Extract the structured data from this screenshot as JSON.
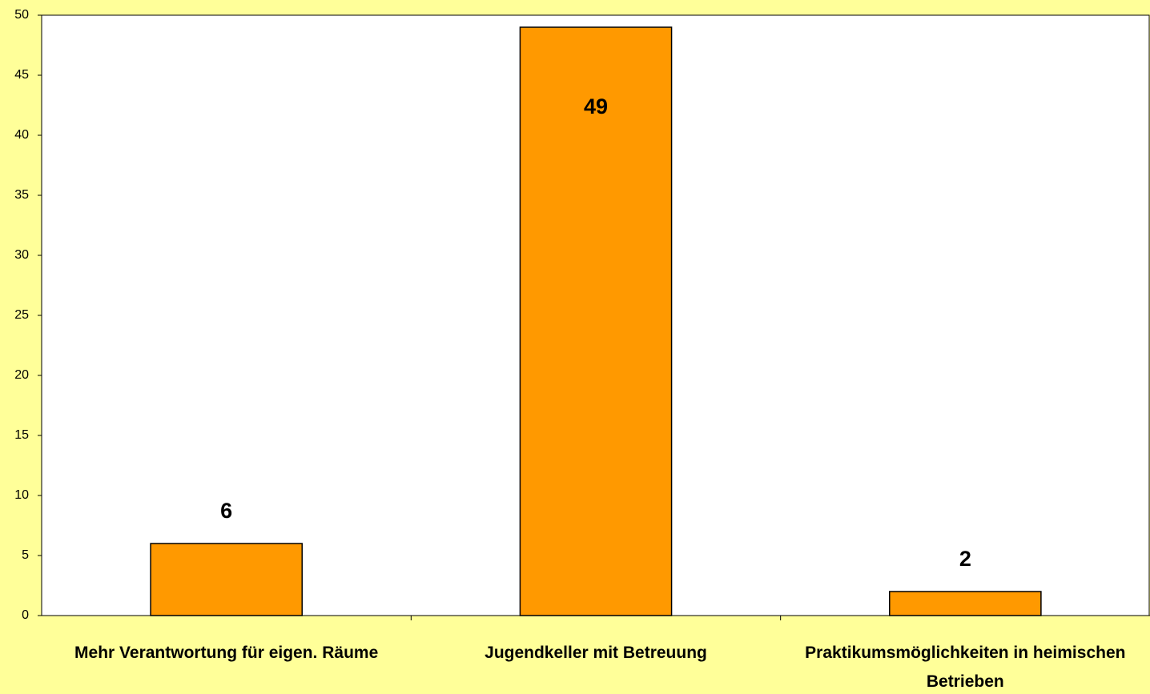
{
  "chart_data": {
    "type": "bar",
    "categories": [
      "Mehr Verantwortung für eigen. Räume",
      "Jugendkeller mit Betreuung",
      "Praktikumsmöglichkeiten in heimischen Betrieben"
    ],
    "values": [
      6,
      49,
      2
    ],
    "color": "#ff9900",
    "ylim": [
      0,
      50
    ],
    "yticks": [
      0,
      5,
      10,
      15,
      20,
      25,
      30,
      35,
      40,
      45,
      50
    ],
    "grid": false
  }
}
